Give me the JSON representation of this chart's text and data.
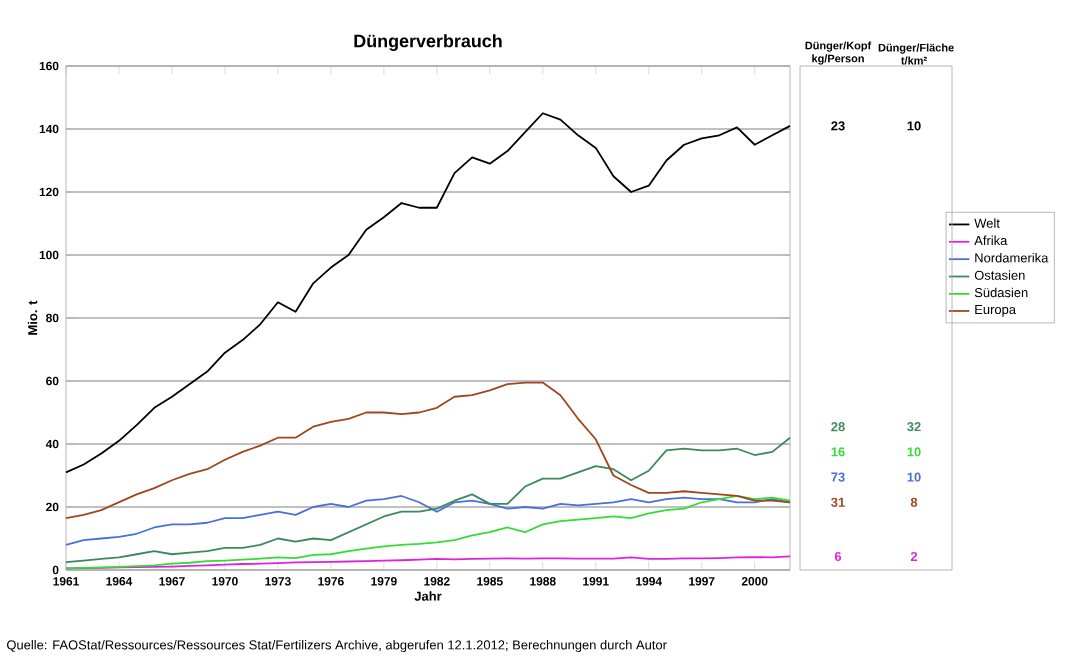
{
  "chart_data": [
    {
      "type": "line",
      "title": "Düngerverbrauch",
      "xlabel": "Jahr",
      "ylabel": "Mio. t",
      "x": [
        1961,
        1962,
        1963,
        1964,
        1965,
        1966,
        1967,
        1968,
        1969,
        1970,
        1971,
        1972,
        1973,
        1974,
        1975,
        1976,
        1977,
        1978,
        1979,
        1980,
        1981,
        1982,
        1983,
        1984,
        1985,
        1986,
        1987,
        1988,
        1989,
        1990,
        1991,
        1992,
        1993,
        1994,
        1995,
        1996,
        1997,
        1998,
        1999,
        2000,
        2001,
        2002
      ],
      "xlim": [
        1961,
        2002
      ],
      "xticks": [
        1961,
        1964,
        1967,
        1970,
        1973,
        1976,
        1979,
        1982,
        1985,
        1988,
        1991,
        1994,
        1997,
        2000
      ],
      "ylim": [
        0,
        160
      ],
      "yticks": [
        0,
        20,
        40,
        60,
        80,
        100,
        120,
        140,
        160
      ],
      "grid": "y",
      "legend": "right",
      "series": [
        {
          "name": "Welt",
          "color": "#000000",
          "values": [
            31,
            33.5,
            37,
            41,
            46,
            51.5,
            55,
            59,
            63,
            69,
            73,
            78,
            85,
            82,
            91,
            96,
            100,
            108,
            112,
            116.5,
            115,
            115,
            126,
            131,
            129,
            133,
            139,
            145,
            143,
            138,
            134,
            125,
            120,
            122,
            130,
            135,
            137,
            138,
            140.5,
            135,
            138,
            141
          ]
        },
        {
          "name": "Afrika",
          "color": "#e020e0",
          "values": [
            0.5,
            0.6,
            0.7,
            0.8,
            0.9,
            1,
            1.1,
            1.3,
            1.5,
            1.7,
            1.9,
            2,
            2.2,
            2.4,
            2.5,
            2.6,
            2.7,
            2.8,
            3,
            3.1,
            3.3,
            3.5,
            3.4,
            3.5,
            3.6,
            3.7,
            3.6,
            3.7,
            3.7,
            3.6,
            3.6,
            3.6,
            4,
            3.5,
            3.5,
            3.7,
            3.7,
            3.8,
            4,
            4.1,
            4,
            4.3
          ]
        },
        {
          "name": "Nordamerika",
          "color": "#4a6fdc",
          "values": [
            8,
            9.5,
            10,
            10.5,
            11.5,
            13.5,
            14.5,
            14.5,
            15,
            16.5,
            16.5,
            17.5,
            18.5,
            17.5,
            20,
            21,
            20,
            22,
            22.5,
            23.5,
            21.5,
            18.5,
            21.5,
            22,
            21,
            19.5,
            20,
            19.5,
            21,
            20.5,
            21,
            21.5,
            22.5,
            21.5,
            22.5,
            23,
            22.5,
            22.5,
            21.5,
            21.5,
            22.5,
            21.5
          ]
        },
        {
          "name": "Ostasien",
          "color": "#3a8a5a",
          "values": [
            2.5,
            3,
            3.5,
            4,
            5,
            6,
            5,
            5.5,
            6,
            7,
            7,
            8,
            10,
            9,
            10,
            9.5,
            12,
            14.5,
            17,
            18.5,
            18.5,
            19.5,
            22,
            24,
            21,
            21,
            26.5,
            29,
            29,
            31,
            33,
            32,
            28.5,
            31.5,
            38,
            38.5,
            38,
            38,
            38.5,
            36.5,
            37.5,
            42
          ]
        },
        {
          "name": "Südasien",
          "color": "#33dd33",
          "values": [
            0.5,
            0.7,
            0.8,
            1,
            1.2,
            1.5,
            2,
            2.3,
            2.8,
            3,
            3.3,
            3.6,
            4,
            3.8,
            4.8,
            5,
            6,
            6.8,
            7.5,
            8,
            8.3,
            8.8,
            9.5,
            11,
            12,
            13.5,
            12,
            14.5,
            15.5,
            16,
            16.5,
            17,
            16.5,
            18,
            19,
            19.5,
            21.5,
            22.5,
            23.5,
            22.5,
            23,
            22
          ]
        },
        {
          "name": "Europa",
          "color": "#a0461a",
          "values": [
            16.5,
            17.5,
            19,
            21.5,
            24,
            26,
            28.5,
            30.5,
            32,
            35,
            37.5,
            39.5,
            42,
            42,
            45.5,
            47,
            48,
            50,
            50,
            49.5,
            50,
            51.5,
            55,
            55.5,
            57,
            59,
            59.5,
            59.5,
            55.5,
            48,
            41.5,
            30,
            27,
            24.5,
            24.5,
            25,
            24.5,
            24,
            23.5,
            22,
            22,
            21.5
          ]
        }
      ],
      "annotations": [
        "Quelle: FAOStat/Ressources/Ressources Stat/Fertilizers Archive, abgerufen 12.1.2012; Berechnungen durch Autor"
      ]
    },
    {
      "type": "other",
      "categories": [
        "Dünger/Kopf kg/Person",
        "Dünger/Fläche t/km²"
      ],
      "data_labels": true,
      "series": [
        {
          "color": "#000000",
          "values": [
            23,
            10
          ]
        },
        {
          "color": "#e020e0",
          "values": [
            6,
            2
          ]
        },
        {
          "color": "#4a6fdc",
          "values": [
            73,
            10
          ]
        },
        {
          "color": "#3a8a5a",
          "values": [
            28,
            32
          ]
        },
        {
          "color": "#33dd33",
          "values": [
            16,
            10
          ]
        },
        {
          "color": "#a0461a",
          "values": [
            31,
            8
          ]
        }
      ]
    }
  ]
}
